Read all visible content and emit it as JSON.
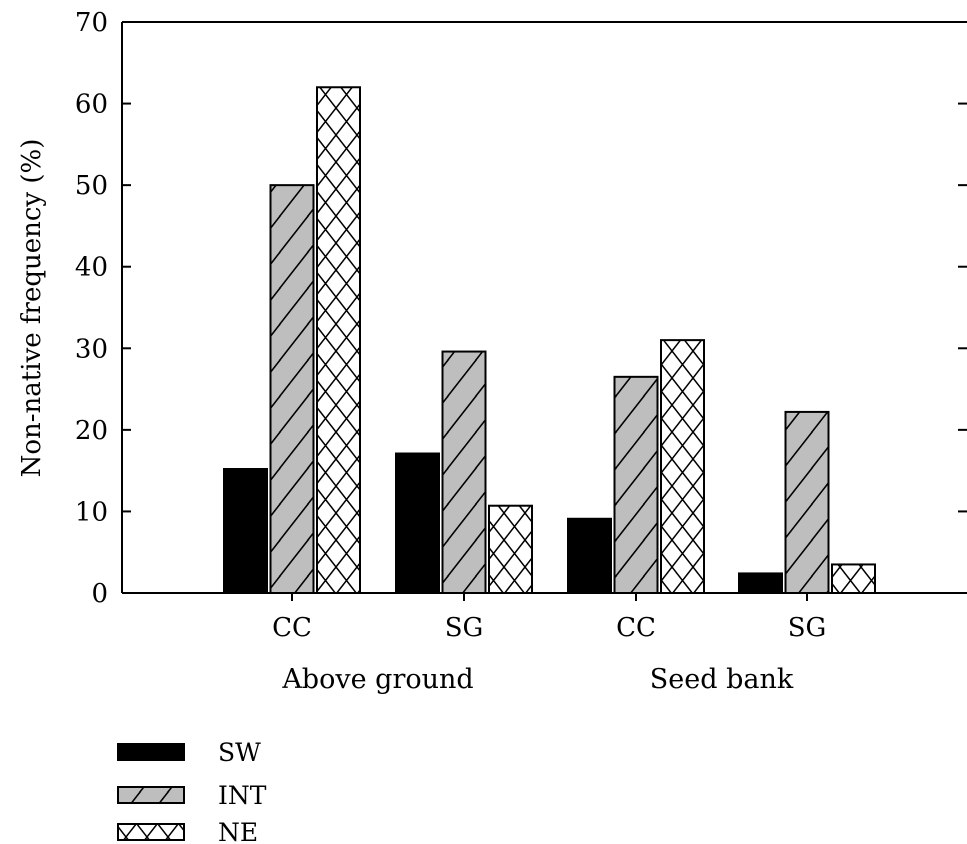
{
  "chart_data": {
    "type": "bar",
    "ylabel": "Non-native frequency (%)",
    "ylim": [
      0,
      70
    ],
    "yticks": [
      0,
      10,
      20,
      30,
      40,
      50,
      60,
      70
    ],
    "grid": false,
    "legend_position": "bottom-left",
    "categories": [
      "CC",
      "SG",
      "CC",
      "SG"
    ],
    "groups": [
      {
        "label": "Above ground",
        "categories": [
          0,
          1
        ]
      },
      {
        "label": "Seed bank",
        "categories": [
          2,
          3
        ]
      }
    ],
    "series": [
      {
        "name": "SW",
        "pattern": "solid",
        "color": "#000000",
        "values": [
          15.2,
          17.1,
          9.1,
          2.4
        ]
      },
      {
        "name": "INT",
        "pattern": "diagonal",
        "color": "#bebebe",
        "values": [
          50.0,
          29.6,
          26.5,
          22.2
        ]
      },
      {
        "name": "NE",
        "pattern": "crosshatch",
        "color": "#ffffff",
        "values": [
          62.0,
          10.7,
          31.0,
          3.5
        ]
      }
    ]
  }
}
